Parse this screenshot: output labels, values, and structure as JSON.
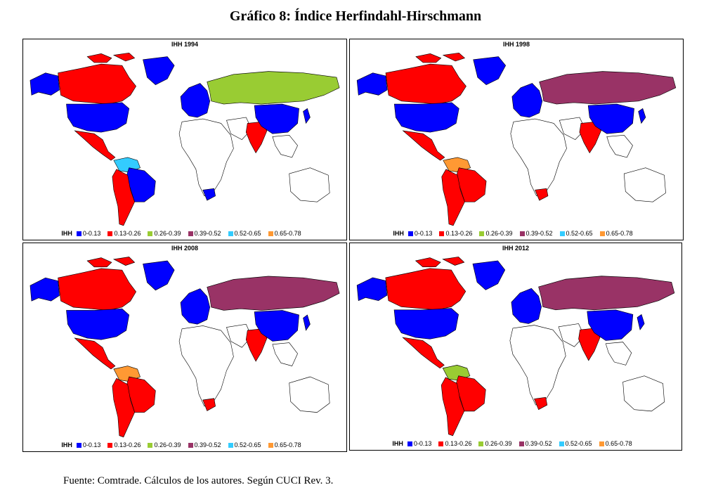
{
  "title": "Gráfico 8: Índice Herfindahl-Hirschmann",
  "source": "Fuente: Comtrade. Cálculos de los autores. Según CUCI Rev. 3.",
  "legend": {
    "label": "IHH",
    "items": [
      {
        "label": "0-0.13",
        "color": "#0000ff"
      },
      {
        "label": "0.13-0.26",
        "color": "#ff0000"
      },
      {
        "label": "0.26-0.39",
        "color": "#99cc33"
      },
      {
        "label": "0.39-0.52",
        "color": "#993366"
      },
      {
        "label": "0.52-0.65",
        "color": "#33ccff"
      },
      {
        "label": "0.65-0.78",
        "color": "#ff9933"
      }
    ]
  },
  "panels": [
    {
      "title": "IHH 1994",
      "regions": {
        "na_north": "#ff0000",
        "usa": "#0000ff",
        "central": "#ff0000",
        "sa_north": "#33ccff",
        "brazil": "#0000ff",
        "sa_south": "#ff0000",
        "greenland": "#0000ff",
        "europe": "#0000ff",
        "russia": "#99cc33",
        "india": "#ff0000",
        "china": "#0000ff",
        "south_africa": "#0000ff"
      }
    },
    {
      "title": "IHH 1998",
      "regions": {
        "na_north": "#ff0000",
        "usa": "#0000ff",
        "central": "#ff0000",
        "sa_north": "#ff9933",
        "brazil": "#ff0000",
        "sa_south": "#ff0000",
        "greenland": "#0000ff",
        "europe": "#0000ff",
        "russia": "#993366",
        "india": "#ff0000",
        "china": "#0000ff",
        "south_africa": "#ff0000"
      }
    },
    {
      "title": "IHH 2008",
      "regions": {
        "na_north": "#ff0000",
        "usa": "#0000ff",
        "central": "#ff0000",
        "sa_north": "#ff9933",
        "brazil": "#ff0000",
        "sa_south": "#ff0000",
        "greenland": "#0000ff",
        "europe": "#0000ff",
        "russia": "#993366",
        "india": "#ff0000",
        "china": "#0000ff",
        "south_africa": "#ff0000"
      }
    },
    {
      "title": "IHH 2012",
      "regions": {
        "na_north": "#ff0000",
        "usa": "#0000ff",
        "central": "#ff0000",
        "sa_north": "#99cc33",
        "brazil": "#ff0000",
        "sa_south": "#ff0000",
        "greenland": "#0000ff",
        "europe": "#0000ff",
        "russia": "#993366",
        "india": "#ff0000",
        "china": "#0000ff",
        "south_africa": "#ff0000"
      }
    }
  ]
}
